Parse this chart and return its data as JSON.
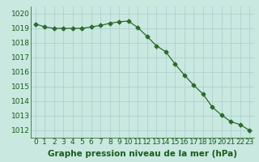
{
  "x": [
    0,
    1,
    2,
    3,
    4,
    5,
    6,
    7,
    8,
    9,
    10,
    11,
    12,
    13,
    14,
    15,
    16,
    17,
    18,
    19,
    20,
    21,
    22,
    23
  ],
  "y": [
    1019.3,
    1019.1,
    1019.0,
    1019.0,
    1019.0,
    1019.0,
    1019.1,
    1019.2,
    1019.35,
    1019.45,
    1019.5,
    1019.05,
    1018.45,
    1017.8,
    1017.4,
    1016.55,
    1015.8,
    1015.1,
    1014.5,
    1013.6,
    1013.05,
    1012.6,
    1012.4,
    1012.0
  ],
  "line_color": "#2d6a2d",
  "marker": "D",
  "marker_size": 2.5,
  "background_color": "#c8e8e0",
  "grid_color": "#aacccc",
  "xlabel": "Graphe pression niveau de la mer (hPa)",
  "xlabel_color": "#1a5c1a",
  "tick_color": "#1a5c1a",
  "ylim": [
    1011.5,
    1020.5
  ],
  "xlim": [
    -0.5,
    23.5
  ],
  "yticks": [
    1012,
    1013,
    1014,
    1015,
    1016,
    1017,
    1018,
    1019,
    1020
  ],
  "xticks": [
    0,
    1,
    2,
    3,
    4,
    5,
    6,
    7,
    8,
    9,
    10,
    11,
    12,
    13,
    14,
    15,
    16,
    17,
    18,
    19,
    20,
    21,
    22,
    23
  ],
  "font_size": 6.5,
  "xlabel_font_size": 7.5
}
